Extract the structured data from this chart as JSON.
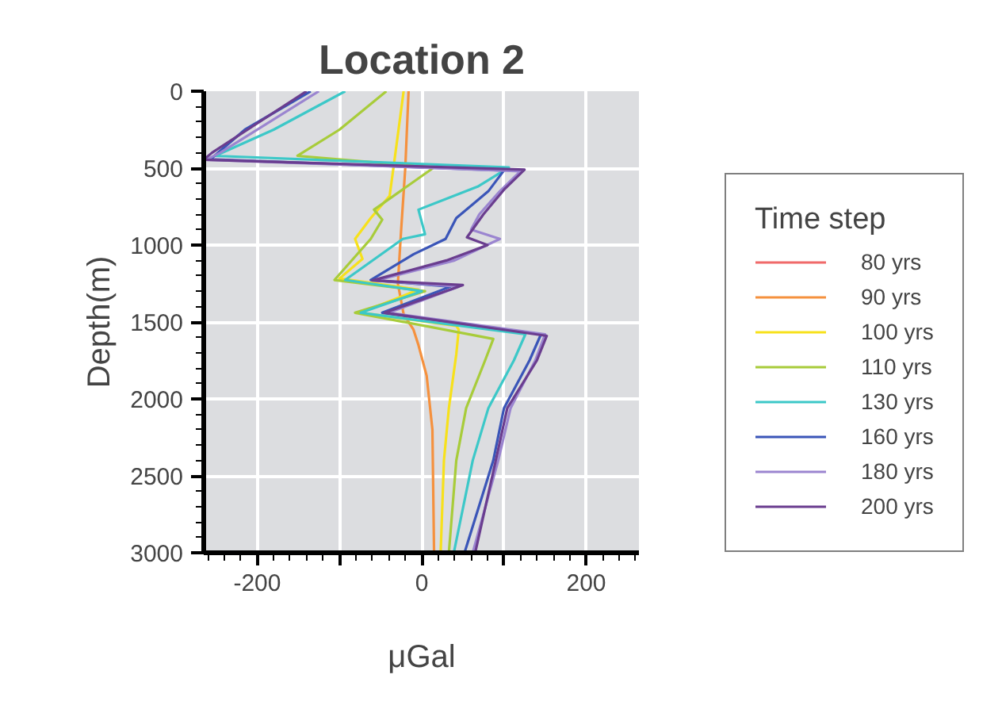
{
  "chart_data": {
    "type": "line",
    "title": "Location 2",
    "xlabel": "μGal",
    "ylabel": "Depth(m)",
    "legend_title": "Time step",
    "legend": "right",
    "grid": true,
    "xlim": [
      -265,
      265
    ],
    "xticks": [
      -200,
      {
        "value": -100,
        "label": null
      },
      0,
      {
        "value": 100,
        "label": null
      },
      200
    ],
    "ylim": [
      3000,
      0
    ],
    "yticks": [
      0,
      500,
      1000,
      1500,
      2000,
      2500,
      3000
    ],
    "series": [
      {
        "name": "80 yrs",
        "color": "#f06a6a",
        "x": [
          null
        ],
        "values": [
          null
        ]
      },
      {
        "name": "90 yrs",
        "color": "#f5913e",
        "x": [
          -16,
          -20,
          -25,
          -29,
          -22,
          -10,
          -4,
          6,
          13,
          15
        ],
        "values": [
          0,
          500,
          900,
          1250,
          1450,
          1550,
          1650,
          1850,
          2200,
          3000
        ]
      },
      {
        "name": "100 yrs",
        "color": "#f7e11b",
        "x": [
          -22,
          -33,
          -39,
          -62,
          -81,
          -72,
          -100,
          -4,
          -74,
          42,
          45,
          42,
          33,
          27,
          23
        ],
        "values": [
          0,
          443,
          680,
          825,
          960,
          1090,
          1217,
          1290,
          1440,
          1525,
          1550,
          1710,
          2060,
          2400,
          3000
        ]
      },
      {
        "name": "110 yrs",
        "color": "#a8cc3a",
        "x": [
          -43,
          -100,
          -151,
          15,
          -58,
          -48,
          -62,
          -106,
          4,
          -81,
          87,
          77,
          54,
          42,
          33
        ],
        "values": [
          0,
          250,
          420,
          495,
          770,
          835,
          960,
          1227,
          1300,
          1440,
          1610,
          1750,
          2060,
          2400,
          3000
        ]
      },
      {
        "name": "130 yrs",
        "color": "#3cc8c8",
        "x": [
          -93,
          -180,
          -251,
          106,
          68,
          -4,
          4,
          -23,
          -93,
          0,
          -74,
          126,
          112,
          81,
          62,
          39
        ],
        "values": [
          0,
          250,
          420,
          495,
          620,
          770,
          930,
          960,
          1227,
          1300,
          1440,
          1580,
          1750,
          2060,
          2400,
          3000
        ]
      },
      {
        "name": "160 yrs",
        "color": "#3a55b8",
        "x": [
          -135,
          -215,
          -257,
          100,
          81,
          42,
          29,
          -10,
          -62,
          35,
          -48,
          145,
          131,
          100,
          87,
          52
        ],
        "values": [
          0,
          250,
          443,
          515,
          650,
          825,
          960,
          1060,
          1227,
          1270,
          1440,
          1580,
          1750,
          2060,
          2400,
          3000
        ]
      },
      {
        "name": "180 yrs",
        "color": "#9b85d0",
        "x": [
          -125,
          -245,
          -262,
          120,
          95,
          70,
          60,
          95,
          40,
          -55,
          45,
          -40,
          150,
          138,
          108,
          93,
          62
        ],
        "values": [
          0,
          400,
          445,
          520,
          650,
          800,
          900,
          960,
          1100,
          1230,
          1270,
          1440,
          1580,
          1750,
          2060,
          2400,
          3000
        ]
      },
      {
        "name": "200 yrs",
        "color": "#6a3d8f",
        "x": [
          -140,
          -255,
          -265,
          125,
          100,
          75,
          55,
          80,
          30,
          -60,
          50,
          -45,
          152,
          140,
          104,
          90,
          65
        ],
        "values": [
          0,
          400,
          445,
          510,
          640,
          800,
          950,
          1000,
          1100,
          1230,
          1260,
          1440,
          1590,
          1750,
          2060,
          2400,
          3000
        ]
      }
    ]
  }
}
